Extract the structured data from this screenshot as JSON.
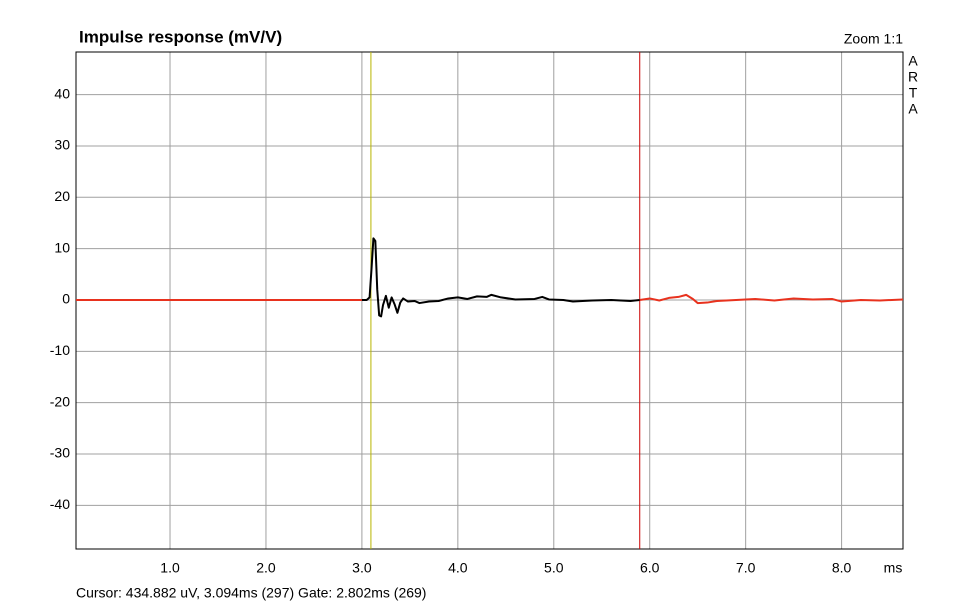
{
  "chart_data": {
    "type": "line",
    "title": "Impulse response (mV/V)",
    "zoom_label": "Zoom 1:1",
    "brand": [
      "A",
      "R",
      "T",
      "A"
    ],
    "x_unit": "ms",
    "footer": "Cursor: 434.882 uV, 3.094ms (297)  Gate: 2.802ms (269)",
    "xlim": [
      0.02,
      8.64
    ],
    "ylim": [
      -48.5,
      48.3
    ],
    "xticks": [
      {
        "value": 1,
        "label": "1.0"
      },
      {
        "value": 2,
        "label": "2.0"
      },
      {
        "value": 3,
        "label": "3.0"
      },
      {
        "value": 4,
        "label": "4.0"
      },
      {
        "value": 5,
        "label": "5.0"
      },
      {
        "value": 6,
        "label": "6.0"
      },
      {
        "value": 7,
        "label": "7.0"
      },
      {
        "value": 8,
        "label": "8.0"
      }
    ],
    "yticks": [
      -40,
      -30,
      -20,
      -10,
      0,
      10,
      20,
      30,
      40
    ],
    "grid": true,
    "markers": [
      {
        "x": 3.094,
        "color": "#b8b400"
      },
      {
        "x": 5.896,
        "color": "#cc0000"
      }
    ],
    "series": [
      {
        "color": "#e8321e",
        "x": [
          0.02,
          3.0
        ],
        "values": [
          0,
          0
        ]
      },
      {
        "color": "#000000",
        "x": [
          3.0,
          3.05,
          3.08,
          3.1,
          3.12,
          3.14,
          3.16,
          3.18,
          3.2,
          3.22,
          3.25,
          3.28,
          3.31,
          3.34,
          3.37,
          3.4,
          3.43,
          3.48,
          3.55,
          3.6,
          3.7,
          3.8,
          3.9,
          4.0,
          4.1,
          4.2,
          4.3,
          4.35,
          4.45,
          4.6,
          4.8,
          4.88,
          4.95,
          5.1,
          5.2,
          5.4,
          5.6,
          5.8,
          5.896
        ],
        "values": [
          0,
          0,
          0.5,
          6,
          12,
          11.5,
          2,
          -3,
          -3.2,
          -1,
          0.8,
          -1.5,
          0.5,
          -0.8,
          -2.5,
          -0.5,
          0.3,
          -0.3,
          -0.2,
          -0.6,
          -0.3,
          -0.2,
          0.3,
          0.5,
          0.2,
          0.7,
          0.6,
          1.0,
          0.5,
          0.1,
          0.2,
          0.6,
          0.1,
          0,
          -0.3,
          -0.1,
          0,
          -0.2,
          0
        ]
      },
      {
        "color": "#e8321e",
        "x": [
          5.896,
          6.0,
          6.1,
          6.2,
          6.3,
          6.38,
          6.45,
          6.5,
          6.6,
          6.7,
          6.9,
          7.1,
          7.3,
          7.5,
          7.7,
          7.9,
          8.0,
          8.2,
          8.4,
          8.64
        ],
        "values": [
          0,
          0.3,
          -0.1,
          0.4,
          0.6,
          1.0,
          0.2,
          -0.6,
          -0.5,
          -0.2,
          0,
          0.2,
          -0.1,
          0.3,
          0.1,
          0.2,
          -0.3,
          0,
          -0.1,
          0.1
        ]
      }
    ]
  }
}
